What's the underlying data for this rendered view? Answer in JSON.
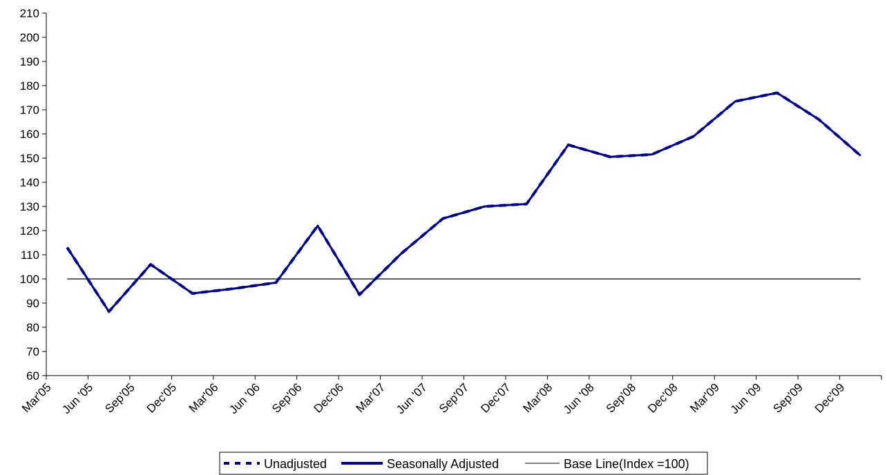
{
  "chart_data": {
    "type": "line",
    "categories": [
      "Mar'05",
      "Jun '05",
      "Sep'05",
      "Dec'05",
      "Mar'06",
      "Jun '06",
      "Sep'06",
      "Dec'06",
      "Mar'07",
      "Jun '07",
      "Sep'07",
      "Dec'07",
      "Mar'08",
      "Jun '08",
      "Sep'08",
      "Dec'08",
      "Mar'09",
      "Jun '09",
      "Sep'09",
      "Dec'09"
    ],
    "ylim": [
      60,
      210
    ],
    "yticks": [
      60,
      70,
      80,
      90,
      100,
      110,
      120,
      130,
      140,
      150,
      160,
      170,
      180,
      190,
      200,
      210
    ],
    "series": [
      {
        "name": "Unadjusted",
        "style": "dashed",
        "color": "#000080",
        "values": [
          113,
          86.5,
          106,
          94,
          96,
          98.5,
          122,
          93.5,
          110.5,
          125,
          130,
          131,
          155.5,
          150.5,
          151.5,
          159,
          173.5,
          177,
          166,
          151
        ]
      },
      {
        "name": "Seasonally Adjusted",
        "style": "solid",
        "color": "#000080",
        "values": [
          113,
          86.5,
          106,
          94,
          96,
          98.5,
          122,
          93.5,
          110.5,
          125,
          130,
          131,
          155.5,
          150.5,
          151.5,
          159,
          173.5,
          177,
          166,
          151
        ]
      },
      {
        "name": "Base Line(Index =100)",
        "style": "thin",
        "color": "#000000",
        "values": [
          100,
          100,
          100,
          100,
          100,
          100,
          100,
          100,
          100,
          100,
          100,
          100,
          100,
          100,
          100,
          100,
          100,
          100,
          100,
          100
        ]
      }
    ],
    "grid": false,
    "legend_position": "bottom"
  }
}
